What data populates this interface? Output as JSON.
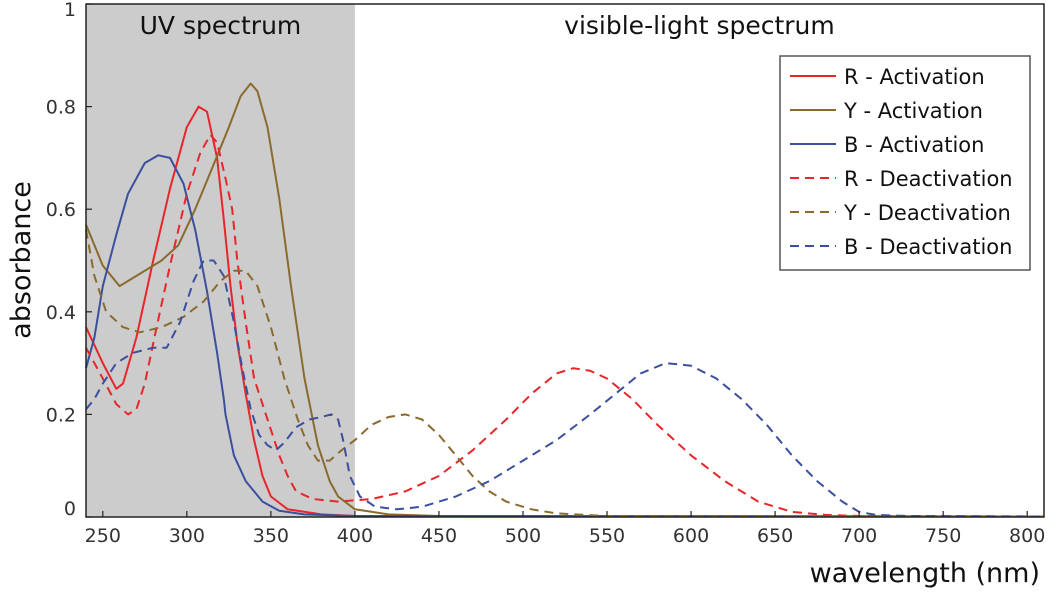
{
  "chart_data": {
    "type": "line",
    "title": "",
    "xlabel": "wavelength (nm)",
    "ylabel": "absorbance",
    "xlim": [
      240,
      810
    ],
    "ylim": [
      0,
      1
    ],
    "x_ticks": [
      250,
      300,
      350,
      400,
      450,
      500,
      550,
      600,
      650,
      700,
      750,
      800
    ],
    "y_ticks": [
      {
        "value": 0,
        "label": "0"
      },
      {
        "value": 0.2,
        "label": "0.2"
      },
      {
        "value": 0.4,
        "label": "0.4"
      },
      {
        "value": 0.6,
        "label": "0.6"
      },
      {
        "value": 0.8,
        "label": "0.8"
      },
      {
        "value": 1,
        "label": "1"
      }
    ],
    "grid": false,
    "legend_position": "top-right",
    "regions": [
      {
        "label": "UV spectrum",
        "x_range": [
          240,
          400
        ],
        "color": "#cccccc"
      },
      {
        "label": "visible-light spectrum",
        "x_range": [
          400,
          810
        ],
        "color": "#ffffff"
      }
    ],
    "series": [
      {
        "name": "R - Activation",
        "color": "#e8262a",
        "style": "solid",
        "points": [
          [
            240,
            0.37
          ],
          [
            250,
            0.3
          ],
          [
            258,
            0.25
          ],
          [
            262,
            0.26
          ],
          [
            270,
            0.35
          ],
          [
            280,
            0.5
          ],
          [
            290,
            0.64
          ],
          [
            300,
            0.76
          ],
          [
            307,
            0.8
          ],
          [
            312,
            0.79
          ],
          [
            318,
            0.7
          ],
          [
            322,
            0.58
          ],
          [
            326,
            0.45
          ],
          [
            330,
            0.34
          ],
          [
            335,
            0.24
          ],
          [
            340,
            0.15
          ],
          [
            345,
            0.08
          ],
          [
            350,
            0.04
          ],
          [
            360,
            0.015
          ],
          [
            380,
            0.005
          ],
          [
            400,
            0.002
          ],
          [
            500,
            0.001
          ],
          [
            810,
            0.001
          ]
        ]
      },
      {
        "name": "Y - Activation",
        "color": "#8a6a2d",
        "style": "solid",
        "points": [
          [
            240,
            0.57
          ],
          [
            250,
            0.49
          ],
          [
            260,
            0.45
          ],
          [
            270,
            0.47
          ],
          [
            285,
            0.5
          ],
          [
            295,
            0.53
          ],
          [
            305,
            0.6
          ],
          [
            315,
            0.68
          ],
          [
            325,
            0.76
          ],
          [
            332,
            0.82
          ],
          [
            338,
            0.845
          ],
          [
            342,
            0.83
          ],
          [
            348,
            0.76
          ],
          [
            355,
            0.62
          ],
          [
            362,
            0.45
          ],
          [
            370,
            0.27
          ],
          [
            378,
            0.14
          ],
          [
            385,
            0.07
          ],
          [
            390,
            0.04
          ],
          [
            400,
            0.015
          ],
          [
            420,
            0.005
          ],
          [
            450,
            0.002
          ],
          [
            810,
            0.001
          ]
        ]
      },
      {
        "name": "B - Activation",
        "color": "#3a4f9e",
        "style": "solid",
        "points": [
          [
            240,
            0.29
          ],
          [
            245,
            0.35
          ],
          [
            250,
            0.45
          ],
          [
            258,
            0.55
          ],
          [
            265,
            0.63
          ],
          [
            275,
            0.69
          ],
          [
            283,
            0.705
          ],
          [
            290,
            0.7
          ],
          [
            298,
            0.65
          ],
          [
            305,
            0.56
          ],
          [
            312,
            0.44
          ],
          [
            318,
            0.32
          ],
          [
            322,
            0.23
          ],
          [
            323,
            0.2
          ],
          [
            328,
            0.12
          ],
          [
            335,
            0.07
          ],
          [
            345,
            0.03
          ],
          [
            355,
            0.012
          ],
          [
            370,
            0.005
          ],
          [
            400,
            0.002
          ],
          [
            810,
            0.001
          ]
        ]
      },
      {
        "name": "R - Deactivation",
        "color": "#e8262a",
        "style": "dashed",
        "points": [
          [
            240,
            0.33
          ],
          [
            250,
            0.27
          ],
          [
            258,
            0.22
          ],
          [
            265,
            0.2
          ],
          [
            270,
            0.21
          ],
          [
            275,
            0.26
          ],
          [
            282,
            0.37
          ],
          [
            290,
            0.49
          ],
          [
            300,
            0.63
          ],
          [
            308,
            0.71
          ],
          [
            314,
            0.745
          ],
          [
            318,
            0.73
          ],
          [
            323,
            0.66
          ],
          [
            327,
            0.6
          ],
          [
            330,
            0.5
          ],
          [
            335,
            0.38
          ],
          [
            340,
            0.27
          ],
          [
            345,
            0.22
          ],
          [
            350,
            0.17
          ],
          [
            355,
            0.12
          ],
          [
            360,
            0.08
          ],
          [
            365,
            0.05
          ],
          [
            375,
            0.035
          ],
          [
            390,
            0.03
          ],
          [
            410,
            0.035
          ],
          [
            430,
            0.05
          ],
          [
            450,
            0.08
          ],
          [
            470,
            0.13
          ],
          [
            490,
            0.19
          ],
          [
            505,
            0.24
          ],
          [
            520,
            0.28
          ],
          [
            530,
            0.29
          ],
          [
            540,
            0.285
          ],
          [
            550,
            0.27
          ],
          [
            565,
            0.23
          ],
          [
            580,
            0.18
          ],
          [
            600,
            0.12
          ],
          [
            620,
            0.07
          ],
          [
            640,
            0.03
          ],
          [
            660,
            0.01
          ],
          [
            680,
            0.004
          ],
          [
            700,
            0.002
          ],
          [
            810,
            0.001
          ]
        ]
      },
      {
        "name": "Y - Deactivation",
        "color": "#8a6a2d",
        "style": "dashed",
        "points": [
          [
            240,
            0.56
          ],
          [
            245,
            0.47
          ],
          [
            252,
            0.4
          ],
          [
            262,
            0.37
          ],
          [
            272,
            0.36
          ],
          [
            285,
            0.37
          ],
          [
            298,
            0.39
          ],
          [
            310,
            0.42
          ],
          [
            320,
            0.46
          ],
          [
            328,
            0.48
          ],
          [
            335,
            0.48
          ],
          [
            342,
            0.45
          ],
          [
            350,
            0.37
          ],
          [
            358,
            0.27
          ],
          [
            366,
            0.19
          ],
          [
            372,
            0.14
          ],
          [
            378,
            0.11
          ],
          [
            385,
            0.11
          ],
          [
            392,
            0.13
          ],
          [
            400,
            0.15
          ],
          [
            410,
            0.18
          ],
          [
            420,
            0.195
          ],
          [
            430,
            0.2
          ],
          [
            440,
            0.19
          ],
          [
            450,
            0.16
          ],
          [
            460,
            0.12
          ],
          [
            470,
            0.08
          ],
          [
            480,
            0.05
          ],
          [
            490,
            0.03
          ],
          [
            505,
            0.015
          ],
          [
            520,
            0.007
          ],
          [
            550,
            0.002
          ],
          [
            810,
            0.001
          ]
        ]
      },
      {
        "name": "B - Deactivation",
        "color": "#3a4f9e",
        "style": "dashed",
        "points": [
          [
            240,
            0.21
          ],
          [
            245,
            0.23
          ],
          [
            250,
            0.26
          ],
          [
            258,
            0.3
          ],
          [
            268,
            0.32
          ],
          [
            280,
            0.33
          ],
          [
            288,
            0.33
          ],
          [
            296,
            0.38
          ],
          [
            304,
            0.46
          ],
          [
            310,
            0.5
          ],
          [
            316,
            0.5
          ],
          [
            322,
            0.47
          ],
          [
            328,
            0.38
          ],
          [
            333,
            0.29
          ],
          [
            338,
            0.21
          ],
          [
            343,
            0.16
          ],
          [
            348,
            0.14
          ],
          [
            353,
            0.13
          ],
          [
            358,
            0.145
          ],
          [
            365,
            0.175
          ],
          [
            373,
            0.19
          ],
          [
            380,
            0.195
          ],
          [
            386,
            0.2
          ],
          [
            390,
            0.19
          ],
          [
            393,
            0.15
          ],
          [
            397,
            0.08
          ],
          [
            403,
            0.04
          ],
          [
            412,
            0.02
          ],
          [
            425,
            0.015
          ],
          [
            440,
            0.02
          ],
          [
            460,
            0.04
          ],
          [
            480,
            0.07
          ],
          [
            500,
            0.11
          ],
          [
            520,
            0.15
          ],
          [
            540,
            0.2
          ],
          [
            555,
            0.24
          ],
          [
            570,
            0.28
          ],
          [
            585,
            0.3
          ],
          [
            600,
            0.295
          ],
          [
            615,
            0.27
          ],
          [
            630,
            0.23
          ],
          [
            645,
            0.18
          ],
          [
            660,
            0.12
          ],
          [
            675,
            0.07
          ],
          [
            690,
            0.03
          ],
          [
            700,
            0.01
          ],
          [
            710,
            0.004
          ],
          [
            730,
            0.002
          ],
          [
            810,
            0.001
          ]
        ]
      }
    ]
  }
}
